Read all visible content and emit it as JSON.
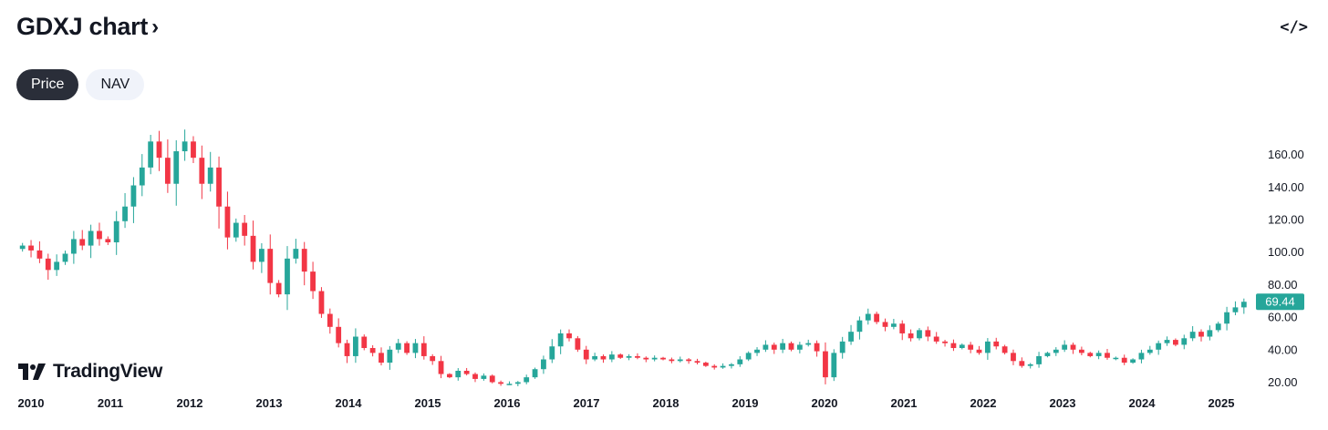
{
  "header": {
    "title": "GDXJ chart",
    "title_chevron": "›",
    "embed_icon": "code-embed-icon",
    "embed_glyph": "</>"
  },
  "tabs": [
    {
      "label": "Price",
      "active": true
    },
    {
      "label": "NAV",
      "active": false
    }
  ],
  "branding": {
    "name": "TradingView"
  },
  "colors": {
    "up": "#26a69a",
    "down": "#f23645",
    "label_bg": "#26a69a"
  },
  "chart_data": {
    "type": "candlestick",
    "ylim": [
      0,
      180
    ],
    "yticks": [
      20,
      40,
      60,
      80,
      100,
      120,
      140,
      160
    ],
    "ytick_labels": [
      "20.00",
      "40.00",
      "60.00",
      "80.00",
      "100.00",
      "120.00",
      "140.00",
      "160.00"
    ],
    "xticks": [
      "2010",
      "2011",
      "2012",
      "2013",
      "2014",
      "2015",
      "2016",
      "2017",
      "2018",
      "2019",
      "2020",
      "2021",
      "2022",
      "2023",
      "2024",
      "2025"
    ],
    "x_start_year": 2010,
    "x_end_year": 2025.5,
    "last_price": 69.44,
    "last_price_label": "69.44",
    "closes": [
      104,
      101,
      96,
      89,
      94,
      99,
      108,
      104,
      113,
      108,
      106,
      119,
      128,
      141,
      152,
      168,
      158,
      142,
      162,
      168,
      158,
      142,
      152,
      128,
      109,
      118,
      110,
      94,
      102,
      81,
      74,
      96,
      102,
      88,
      76,
      62,
      54,
      44,
      36,
      48,
      41,
      38,
      32,
      40,
      44,
      38,
      44,
      36,
      33,
      25,
      23,
      27,
      25,
      22,
      24,
      20,
      19,
      19,
      20,
      23,
      28,
      34,
      42,
      50,
      47,
      40,
      34,
      36,
      34,
      37,
      35,
      36,
      35,
      34,
      35,
      34,
      33,
      34,
      33,
      32,
      30,
      29,
      30,
      31,
      34,
      38,
      40,
      43,
      40,
      44,
      40,
      43,
      44,
      39,
      23,
      38,
      45,
      51,
      58,
      62,
      57,
      54,
      56,
      50,
      47,
      52,
      48,
      45,
      44,
      41,
      43,
      40,
      38,
      45,
      42,
      38,
      33,
      30,
      31,
      36,
      38,
      40,
      43,
      40,
      38,
      36,
      38,
      35,
      35,
      32,
      34,
      38,
      40,
      44,
      46,
      43,
      47,
      51,
      48,
      52,
      56,
      63,
      66,
      69.44
    ],
    "grid": false,
    "legend": "none"
  }
}
